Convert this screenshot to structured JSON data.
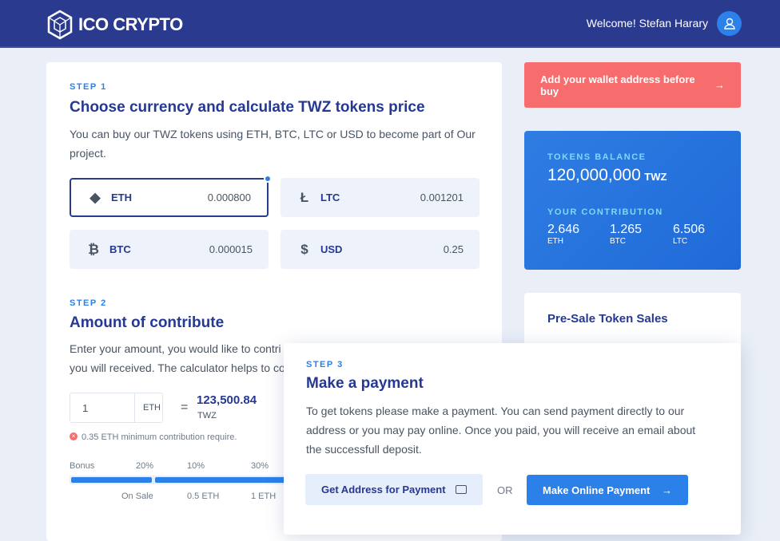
{
  "header": {
    "brand": "ICO CRYPTO",
    "welcome": "Welcome! Stefan Harary"
  },
  "step1": {
    "step": "STEP 1",
    "title": "Choose currency and calculate TWZ tokens price",
    "desc": "You can buy our TWZ tokens using ETH, BTC, LTC or USD to become part of Our project.",
    "currencies": [
      {
        "name": "ETH",
        "value": "0.000800",
        "icon": "ethereum-icon",
        "selected": true
      },
      {
        "name": "LTC",
        "value": "0.001201",
        "icon": "litecoin-icon"
      },
      {
        "name": "BTC",
        "value": "0.000015",
        "icon": "bitcoin-icon"
      },
      {
        "name": "USD",
        "value": "0.25",
        "icon": "dollar-icon"
      }
    ]
  },
  "step2": {
    "step": "STEP 2",
    "title": "Amount of contribute",
    "desc1": "Enter your amount, you would like to contri",
    "desc2": "you will received. The calculator helps to co",
    "amount": "1",
    "unit": "ETH",
    "eq": "=",
    "result": "123,500.84",
    "result_unit": "TWZ",
    "error": "0.35 ETH minimum contribution require.",
    "bonus": {
      "label": "Bonus",
      "tiers": [
        {
          "pct": "20%",
          "cond": "On Sale"
        },
        {
          "pct": "10%",
          "cond": "0.5 ETH"
        },
        {
          "pct": "30%",
          "cond": "1 ETH"
        }
      ]
    }
  },
  "wallet_button": "Add your wallet address before buy",
  "balance": {
    "label": "TOKENS BALANCE",
    "value": "120,000,000",
    "unit": "TWZ",
    "contrib_label": "YOUR CONTRIBUTION",
    "contribs": [
      {
        "v": "2.646",
        "c": "ETH"
      },
      {
        "v": "1.265",
        "c": "BTC"
      },
      {
        "v": "6.506",
        "c": "LTC"
      }
    ]
  },
  "presale": {
    "title": "Pre-Sale Token Sales"
  },
  "step3": {
    "step": "STEP 3",
    "title": "Make a payment",
    "desc": "To get tokens please make a payment. You can send payment directly to our address or you may pay online. Once you paid, you will receive an email about the successfull deposit.",
    "address_button": "Get Address for Payment",
    "or": "OR",
    "online_button": "Make Online Payment"
  },
  "colors": {
    "header": "#2a3a8f",
    "accent": "#2c80ea",
    "wallet": "#f76c6c"
  }
}
